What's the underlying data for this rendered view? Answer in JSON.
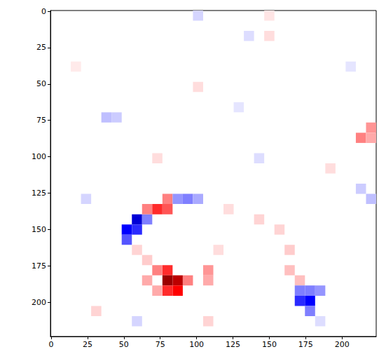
{
  "chart_data": {
    "type": "heatmap",
    "xlim": [
      -0.5,
      223.5
    ],
    "ylim": [
      223.5,
      -0.5
    ],
    "xticks": [
      0,
      25,
      50,
      75,
      100,
      125,
      150,
      175,
      200
    ],
    "yticks": [
      0,
      25,
      50,
      75,
      100,
      125,
      150,
      175,
      200
    ],
    "grid": false,
    "cell_size": 7,
    "color_range": [
      -1,
      1
    ],
    "cells": [
      [
        49,
        147,
        -0.6
      ],
      [
        49,
        154,
        -0.4
      ],
      [
        56,
        140,
        -0.7
      ],
      [
        56,
        147,
        -0.5
      ],
      [
        63,
        140,
        -0.3
      ],
      [
        63,
        133,
        0.3
      ],
      [
        70,
        133,
        0.5
      ],
      [
        77,
        126,
        0.3
      ],
      [
        77,
        133,
        0.4
      ],
      [
        84,
        126,
        -0.25
      ],
      [
        91,
        126,
        -0.3
      ],
      [
        98,
        126,
        -0.2
      ],
      [
        77,
        175,
        0.5
      ],
      [
        77,
        182,
        0.9
      ],
      [
        84,
        182,
        0.8
      ],
      [
        84,
        189,
        0.6
      ],
      [
        77,
        189,
        0.5
      ],
      [
        70,
        175,
        0.3
      ],
      [
        91,
        182,
        0.3
      ],
      [
        105,
        175,
        0.25
      ],
      [
        105,
        182,
        0.2
      ],
      [
        63,
        182,
        0.2
      ],
      [
        70,
        189,
        0.2
      ],
      [
        63,
        168,
        0.12
      ],
      [
        56,
        161,
        0.1
      ],
      [
        140,
        140,
        0.1
      ],
      [
        119,
        133,
        0.08
      ],
      [
        154,
        147,
        0.1
      ],
      [
        161,
        161,
        0.12
      ],
      [
        161,
        175,
        0.15
      ],
      [
        168,
        182,
        0.15
      ],
      [
        112,
        161,
        0.08
      ],
      [
        168,
        189,
        -0.3
      ],
      [
        168,
        196,
        -0.5
      ],
      [
        175,
        196,
        -0.6
      ],
      [
        175,
        189,
        -0.3
      ],
      [
        182,
        189,
        -0.25
      ],
      [
        175,
        203,
        -0.3
      ],
      [
        35,
        70,
        -0.15
      ],
      [
        42,
        70,
        -0.12
      ],
      [
        210,
        84,
        0.3
      ],
      [
        217,
        77,
        0.25
      ],
      [
        217,
        84,
        0.2
      ],
      [
        210,
        119,
        -0.12
      ],
      [
        217,
        126,
        -0.15
      ],
      [
        98,
        49,
        0.08
      ],
      [
        133,
        14,
        -0.08
      ],
      [
        147,
        14,
        0.08
      ],
      [
        21,
        126,
        -0.1
      ],
      [
        28,
        203,
        0.1
      ],
      [
        56,
        210,
        -0.1
      ],
      [
        105,
        210,
        0.1
      ],
      [
        140,
        98,
        -0.08
      ],
      [
        189,
        105,
        0.08
      ],
      [
        70,
        98,
        0.08
      ],
      [
        126,
        63,
        -0.06
      ],
      [
        203,
        35,
        -0.06
      ],
      [
        14,
        35,
        0.05
      ],
      [
        182,
        210,
        -0.08
      ],
      [
        98,
        0,
        -0.1
      ],
      [
        147,
        0,
        0.06
      ]
    ]
  }
}
